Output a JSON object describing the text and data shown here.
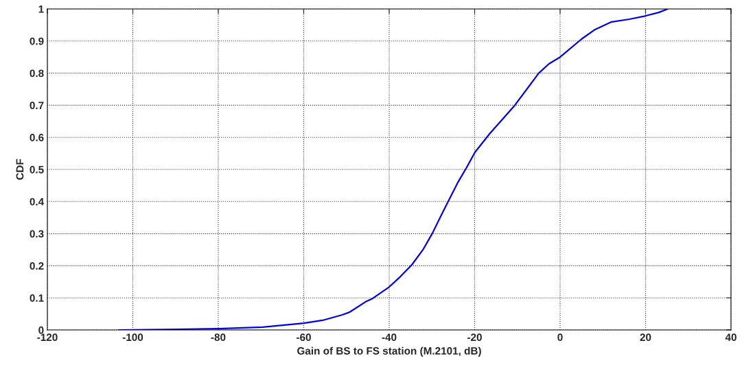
{
  "chart_data": {
    "type": "line",
    "xlabel": "Gain of BS to FS station (M.2101, dB)",
    "ylabel": "CDF",
    "series": [
      {
        "color": "#0000ee",
        "x": [
          -103.3,
          -90,
          -80,
          -69.6,
          -60,
          -55.6,
          -51,
          -49.2,
          -45.5,
          -43.9,
          -40,
          -37.4,
          -34.7,
          -32.0,
          -29.9,
          -27.8,
          -25.9,
          -24.0,
          -21.8,
          -20.2,
          -19.9,
          -16.5,
          -10.6,
          -5.0,
          -2.6,
          0,
          5.0,
          8.2,
          11.9,
          16.2,
          19.9,
          23.1,
          25.2
        ],
        "values": [
          0,
          0.002,
          0.004,
          0.009,
          0.021,
          0.03,
          0.047,
          0.056,
          0.088,
          0.098,
          0.134,
          0.166,
          0.203,
          0.252,
          0.301,
          0.358,
          0.408,
          0.458,
          0.508,
          0.547,
          0.554,
          0.611,
          0.7,
          0.8,
          0.829,
          0.85,
          0.906,
          0.936,
          0.959,
          0.968,
          0.978,
          0.989,
          1.0
        ]
      }
    ],
    "xlim": [
      -120,
      40
    ],
    "xticks": [
      -120,
      -100,
      -80,
      -60,
      -40,
      -20,
      0,
      20,
      40
    ],
    "ylim": [
      0,
      1
    ],
    "yticks": [
      0,
      0.1,
      0.2,
      0.3,
      0.4,
      0.5,
      0.6,
      0.7,
      0.8,
      0.9,
      1
    ],
    "grid": true,
    "marker": "none",
    "line_style": "solid",
    "legend": false
  }
}
